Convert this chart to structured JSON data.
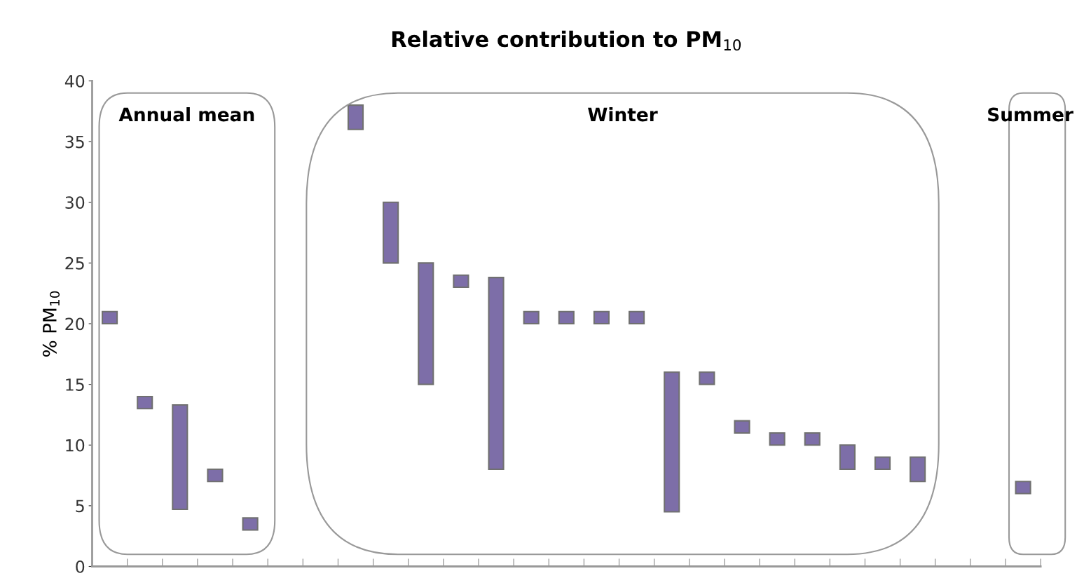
{
  "chart_data": {
    "type": "bar",
    "title": "Relative contribution to PM$_{10}$",
    "ylabel": "% PM$_{10}$",
    "categories": [
      null,
      null,
      null,
      null,
      null,
      null,
      null,
      null,
      null,
      null,
      null,
      null,
      null,
      null,
      null,
      null,
      null,
      null,
      null,
      null,
      null,
      null,
      null,
      null,
      null,
      null,
      null
    ],
    "base": [
      20,
      13,
      4.7,
      7,
      3,
      null,
      null,
      36,
      25,
      15,
      23,
      8,
      20,
      20,
      20,
      20,
      4.5,
      15,
      11,
      10,
      10,
      8,
      8,
      7,
      null,
      null,
      6
    ],
    "values": [
      1,
      1,
      8.6,
      1,
      1,
      null,
      null,
      2,
      5,
      10,
      1,
      15.8,
      1,
      1,
      1,
      1,
      11.5,
      1,
      1,
      1,
      1,
      2,
      1,
      2,
      null,
      null,
      1
    ],
    "color": "#7d6ea8",
    "ylim": [
      0,
      40
    ],
    "yticks": [
      0,
      5,
      10,
      15,
      20,
      25,
      30,
      35,
      40
    ],
    "grid": false,
    "legend": false,
    "annotations": [
      "Annual mean",
      "Winter",
      "Summer"
    ]
  }
}
